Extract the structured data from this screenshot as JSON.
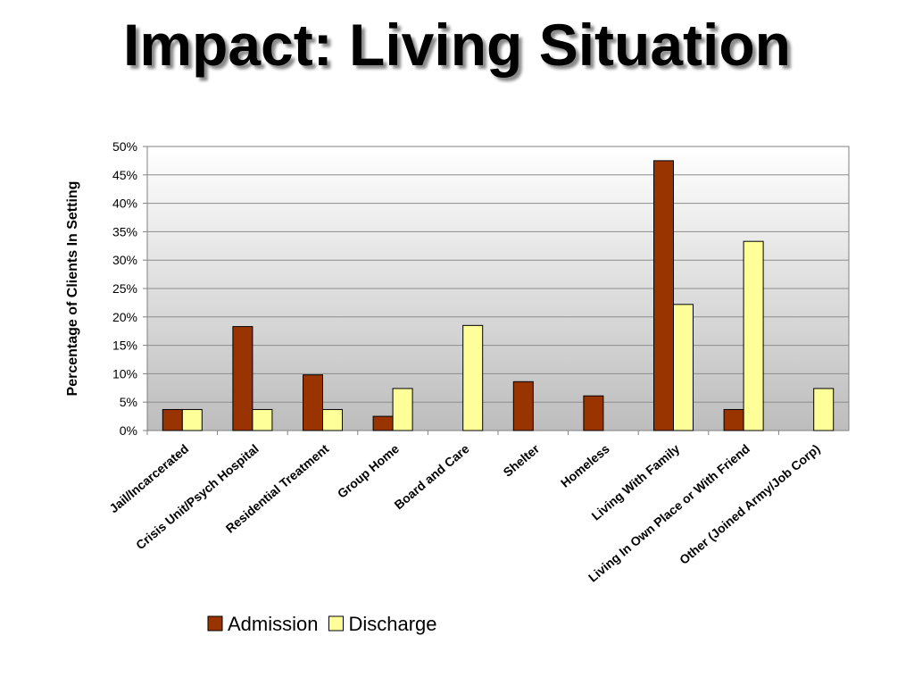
{
  "slide": {
    "title": "Impact: Living Situation"
  },
  "chart_data": {
    "type": "bar",
    "title": "",
    "xlabel": "",
    "ylabel": "Percentage of Clients In Setting",
    "ylim": [
      0,
      50
    ],
    "yticks": [
      "0%",
      "5%",
      "10%",
      "15%",
      "20%",
      "25%",
      "30%",
      "35%",
      "40%",
      "45%",
      "50%"
    ],
    "grid": true,
    "legend_position": "bottom",
    "categories": [
      "Jail/Incarcerated",
      "Crisis Unit/Psych Hospital",
      "Residential Treatment",
      "Group Home",
      "Board and Care",
      "Shelter",
      "Homeless",
      "Living With Family",
      "Living In Own Place or With Friend",
      "Other (Joined Army/Job Corp)"
    ],
    "series": [
      {
        "name": "Admission",
        "color": "#993300",
        "values": [
          3.7,
          18.3,
          9.8,
          2.5,
          0,
          8.6,
          6.1,
          47.5,
          3.7,
          0
        ]
      },
      {
        "name": "Discharge",
        "color": "#FFFF99",
        "values": [
          3.7,
          3.7,
          3.7,
          7.4,
          18.5,
          0,
          0,
          22.2,
          33.3,
          7.4
        ]
      }
    ]
  }
}
